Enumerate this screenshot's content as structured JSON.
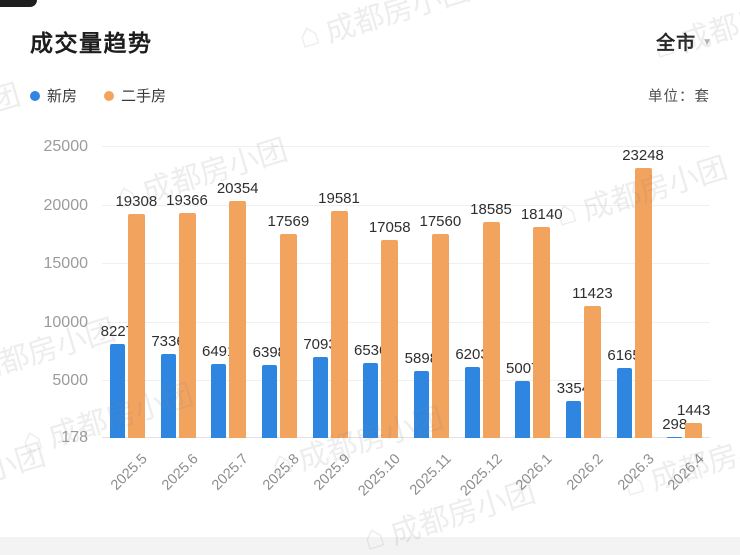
{
  "header": {
    "title": "成交量趋势",
    "region_selector": "全市",
    "unit_label": "单位：套"
  },
  "legend": [
    {
      "id": "new-homes",
      "label": "新房",
      "color": "#2e86e1"
    },
    {
      "id": "resale-homes",
      "label": "二手房",
      "color": "#f2a35e"
    }
  ],
  "watermark": {
    "text": "成都房小团"
  },
  "colors": {
    "new_homes": "#2e86e1",
    "resale_homes": "#f2a35e",
    "value_label": "#2e2e2e",
    "axis_label": "#9b9b9b"
  },
  "chart_data": {
    "type": "bar",
    "title": "成交量趋势",
    "unit": "套",
    "categories": [
      "2025.5",
      "2025.6",
      "2025.7",
      "2025.8",
      "2025.9",
      "2025.10",
      "2025.11",
      "2025.12",
      "2026.1",
      "2026.2",
      "2026.3",
      "2026.4"
    ],
    "series": [
      {
        "name": "新房",
        "color": "#2e86e1",
        "values": [
          8227,
          7336,
          6491,
          6398,
          7093,
          6536,
          5898,
          6203,
          5007,
          3354,
          6165,
          298
        ]
      },
      {
        "name": "二手房",
        "color": "#f2a35e",
        "values": [
          19308,
          19366,
          20354,
          17569,
          19581,
          17058,
          17560,
          18585,
          18140,
          11423,
          23248,
          1443
        ]
      }
    ],
    "y_ticks": [
      178,
      5000,
      10000,
      15000,
      20000,
      25000
    ],
    "ylim": [
      178,
      25000
    ],
    "grid": true,
    "legend_position": "top-left",
    "value_labels": true,
    "xlabel": "",
    "ylabel": ""
  }
}
